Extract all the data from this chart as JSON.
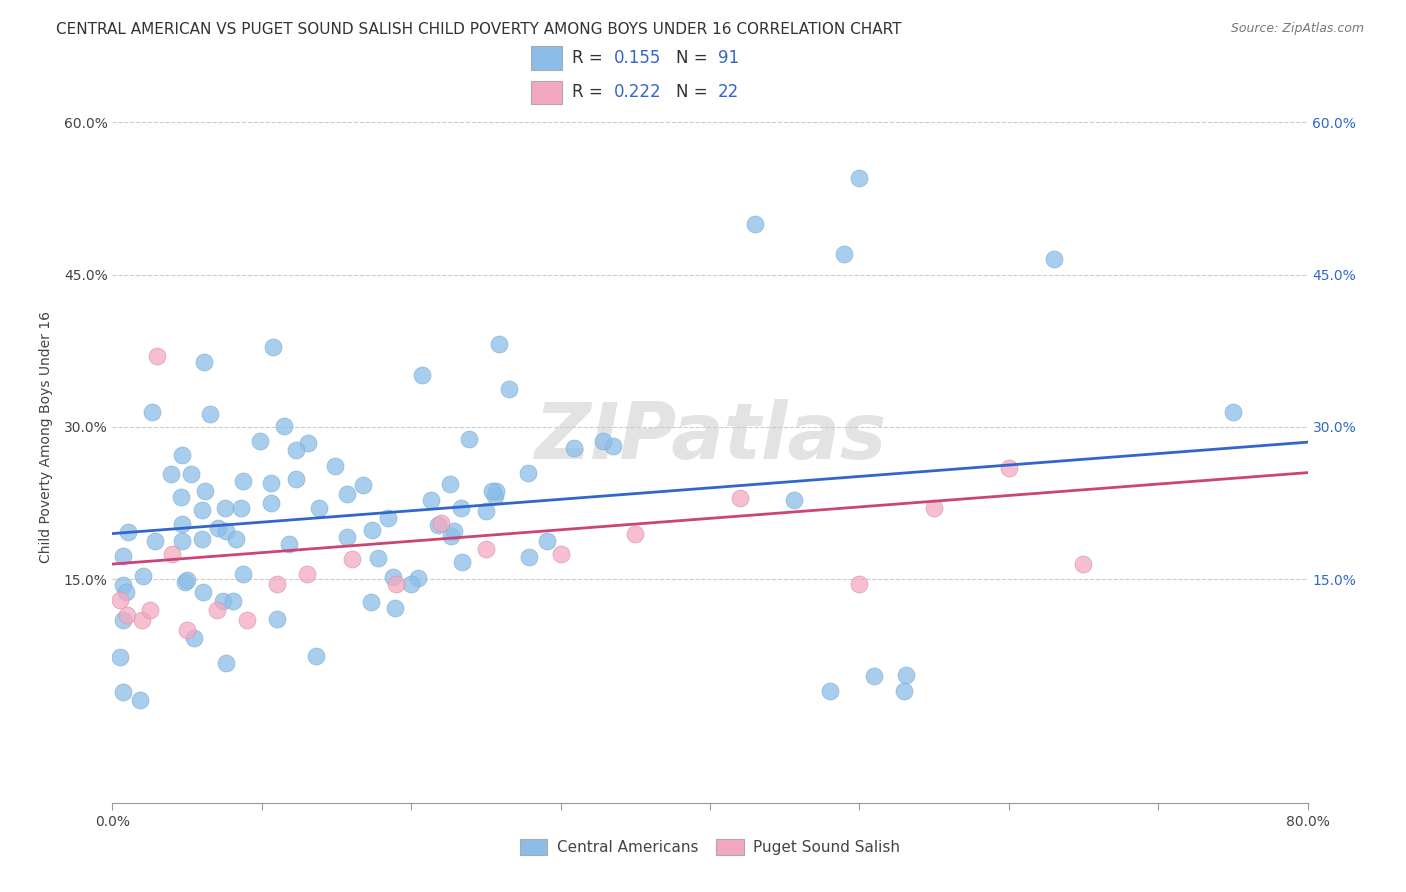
{
  "title": "CENTRAL AMERICAN VS PUGET SOUND SALISH CHILD POVERTY AMONG BOYS UNDER 16 CORRELATION CHART",
  "source": "Source: ZipAtlas.com",
  "ylabel": "Child Poverty Among Boys Under 16",
  "xlim": [
    0.0,
    0.8
  ],
  "ylim": [
    -0.07,
    0.65
  ],
  "xticks": [
    0.0,
    0.1,
    0.2,
    0.3,
    0.4,
    0.5,
    0.6,
    0.7,
    0.8
  ],
  "xtick_labels_show": [
    "0.0%",
    "",
    "",
    "",
    "",
    "",
    "",
    "",
    "80.0%"
  ],
  "yticks": [
    0.15,
    0.3,
    0.45,
    0.6
  ],
  "ytick_labels": [
    "15.0%",
    "30.0%",
    "45.0%",
    "60.0%"
  ],
  "right_ytick_labels": [
    "15.0%",
    "30.0%",
    "45.0%",
    "60.0%"
  ],
  "blue_R": 0.155,
  "blue_N": 91,
  "pink_R": 0.222,
  "pink_N": 22,
  "blue_color": "#8bbde8",
  "pink_color": "#f4a8c0",
  "blue_line_color": "#3366cc",
  "pink_line_color": "#cc4477",
  "legend_text_color": "#3366cc",
  "watermark": "ZIPatlas",
  "background_color": "#ffffff",
  "grid_color": "#cccccc",
  "title_fontsize": 11,
  "axis_label_fontsize": 10,
  "tick_fontsize": 10,
  "blue_trend_start_y": 0.195,
  "blue_trend_end_y": 0.285,
  "pink_trend_start_y": 0.165,
  "pink_trend_end_y": 0.255
}
